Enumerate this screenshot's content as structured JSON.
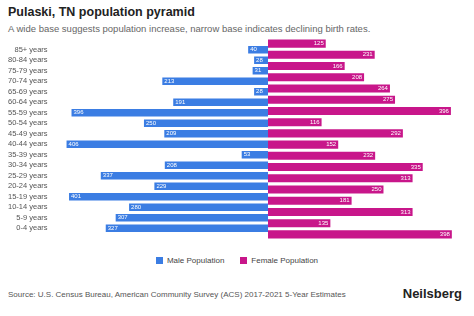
{
  "chart_data": {
    "type": "bar",
    "orientation": "horizontal",
    "title": "Pulaski, TN population pyramid",
    "subtitle": "A wide base suggests population increase, narrow base indicates declining birth rates.",
    "categories": [
      "85+ years",
      "80-84 years",
      "75-79 years",
      "70-74 years",
      "65-69 years",
      "60-64 years",
      "55-59 years",
      "50-54 years",
      "45-49 years",
      "40-44 years",
      "35-39 years",
      "30-34 years",
      "25-29 years",
      "20-24 years",
      "15-19 years",
      "10-14 years",
      "5-9 years",
      "0-4 years"
    ],
    "series": [
      {
        "name": "Male Population",
        "color": "#3b7de3",
        "values": [
          40,
          28,
          31,
          213,
          28,
          191,
          396,
          250,
          209,
          406,
          53,
          208,
          337,
          229,
          401,
          280,
          307,
          327
        ]
      },
      {
        "name": "Female Population",
        "color": "#c8168a",
        "values": [
          125,
          231,
          166,
          208,
          264,
          275,
          396,
          116,
          292,
          152,
          232,
          335,
          313,
          250,
          181,
          313,
          135,
          398
        ]
      }
    ],
    "xlim": [
      0,
      420
    ],
    "grid": false,
    "data_labels": true,
    "tick_labels": "y",
    "legend": "bottom",
    "source": "Source: U.S. Census Bureau, American Community Survey (ACS) 2017-2021 5-Year Estimates",
    "brand": "Neilsberg"
  }
}
